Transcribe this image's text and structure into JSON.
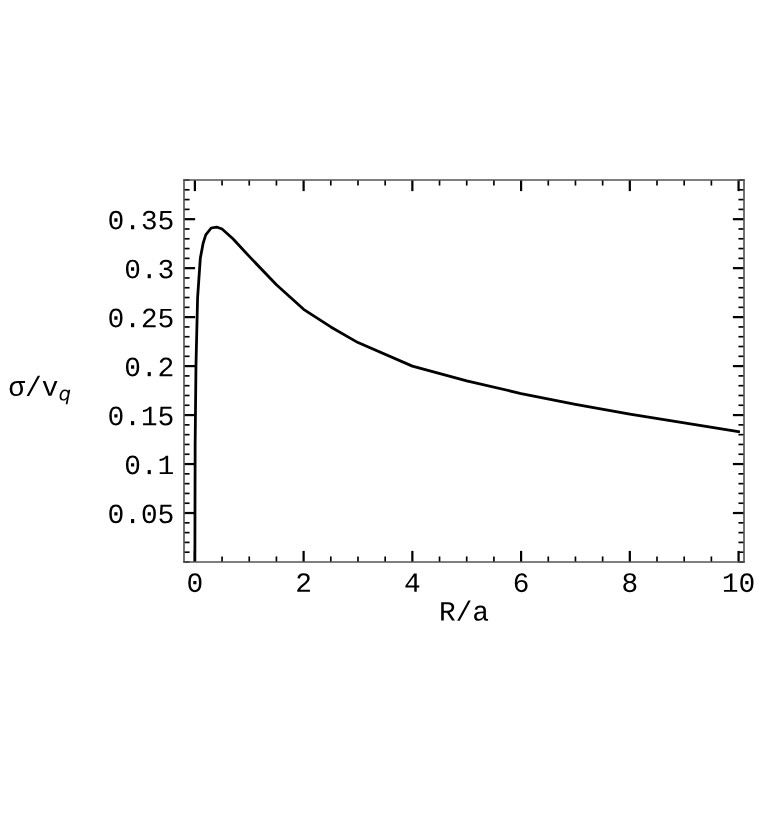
{
  "chart_data": {
    "type": "line",
    "xlabel": "R/a",
    "ylabel": "σ/v$_{q}$",
    "x": [
      0.0,
      0.005,
      0.02,
      0.05,
      0.1,
      0.15,
      0.2,
      0.3,
      0.4,
      0.5,
      0.7,
      1.0,
      1.5,
      2.0,
      2.5,
      3.0,
      4.0,
      5.0,
      6.0,
      7.0,
      8.0,
      9.0,
      10.0
    ],
    "series": [
      {
        "color": "#000000",
        "values": [
          0.0,
          0.12,
          0.2,
          0.27,
          0.31,
          0.325,
          0.334,
          0.341,
          0.342,
          0.34,
          0.33,
          0.312,
          0.283,
          0.258,
          0.24,
          0.224,
          0.2,
          0.185,
          0.172,
          0.161,
          0.151,
          0.142,
          0.133
        ]
      }
    ],
    "xlim": [
      -0.2,
      10.1
    ],
    "ylim": [
      0,
      0.39
    ],
    "xticks": [
      0,
      2,
      4,
      6,
      8,
      10
    ],
    "yticks": [
      {
        "value": 0.05,
        "label": "0.05"
      },
      {
        "value": 0.1,
        "label": "0.1"
      },
      {
        "value": 0.15,
        "label": "0.15"
      },
      {
        "value": 0.2,
        "label": "0.2"
      },
      {
        "value": 0.25,
        "label": "0.25"
      },
      {
        "value": 0.3,
        "label": "0.3"
      },
      {
        "value": 0.35,
        "label": "0.35"
      }
    ],
    "grid": false,
    "legend": false,
    "marker": "none",
    "line_style": "solid"
  }
}
